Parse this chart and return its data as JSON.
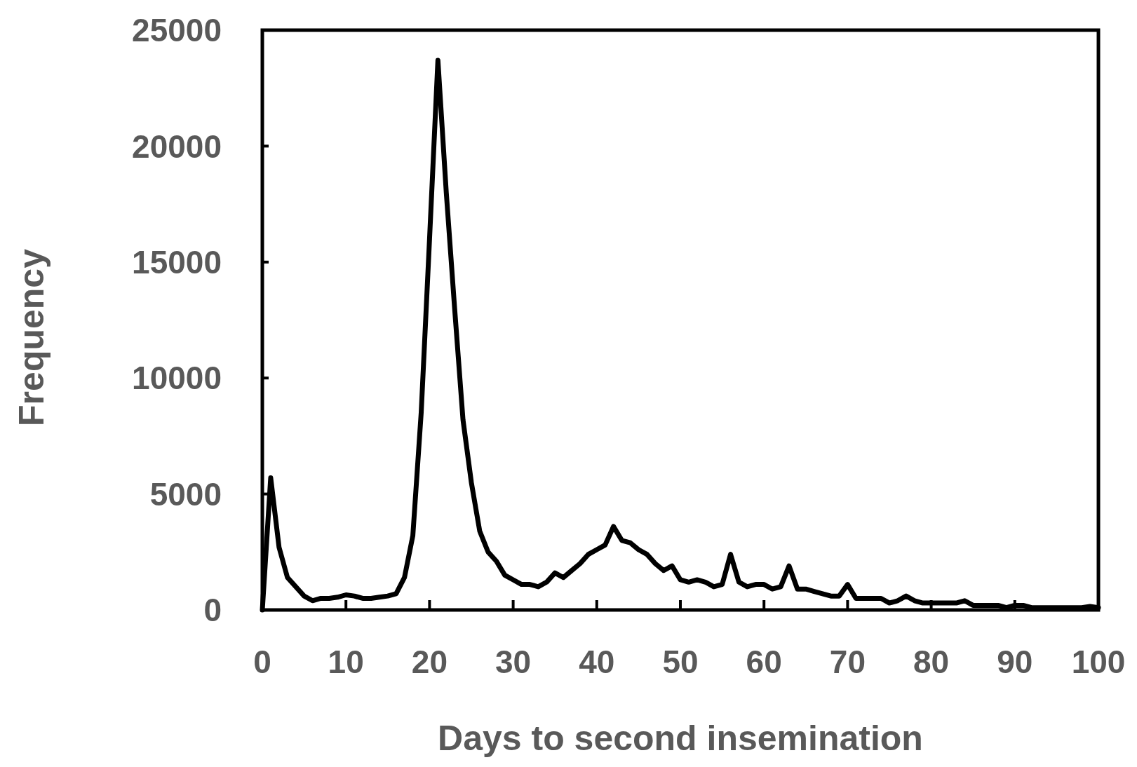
{
  "chart_data": {
    "type": "line",
    "xlabel": "Days to second insemination",
    "ylabel": "Frequency",
    "x": [
      0,
      1,
      2,
      3,
      4,
      5,
      6,
      7,
      8,
      9,
      10,
      11,
      12,
      13,
      14,
      15,
      16,
      17,
      18,
      19,
      20,
      21,
      22,
      23,
      24,
      25,
      26,
      27,
      28,
      29,
      30,
      31,
      32,
      33,
      34,
      35,
      36,
      37,
      38,
      39,
      40,
      41,
      42,
      43,
      44,
      45,
      46,
      47,
      48,
      49,
      50,
      51,
      52,
      53,
      54,
      55,
      56,
      57,
      58,
      59,
      60,
      61,
      62,
      63,
      64,
      65,
      66,
      67,
      68,
      69,
      70,
      71,
      72,
      73,
      74,
      75,
      76,
      77,
      78,
      79,
      80,
      81,
      82,
      83,
      84,
      85,
      86,
      87,
      88,
      89,
      90,
      91,
      92,
      93,
      94,
      95,
      96,
      97,
      98,
      99,
      100
    ],
    "series": [
      {
        "color": "#000000",
        "values": [
          0,
          5700,
          2700,
          1400,
          1000,
          600,
          400,
          500,
          500,
          550,
          650,
          600,
          500,
          500,
          550,
          600,
          700,
          1400,
          3200,
          8500,
          16000,
          23700,
          18000,
          13000,
          8200,
          5500,
          3400,
          2500,
          2100,
          1500,
          1300,
          1100,
          1100,
          1000,
          1200,
          1600,
          1400,
          1700,
          2000,
          2400,
          2600,
          2800,
          3600,
          3000,
          2900,
          2600,
          2400,
          2000,
          1700,
          1900,
          1300,
          1200,
          1300,
          1200,
          1000,
          1100,
          2400,
          1200,
          1000,
          1100,
          1100,
          900,
          1000,
          1900,
          900,
          900,
          800,
          700,
          600,
          600,
          1100,
          500,
          500,
          500,
          500,
          300,
          400,
          600,
          400,
          300,
          300,
          300,
          300,
          300,
          400,
          200,
          200,
          200,
          200,
          100,
          200,
          200,
          100,
          100,
          100,
          100,
          100,
          100,
          100,
          150,
          100
        ]
      }
    ],
    "xlim": [
      0,
      100
    ],
    "xticks": [
      0,
      10,
      20,
      30,
      40,
      50,
      60,
      70,
      80,
      90,
      100
    ],
    "ylim": [
      0,
      25000
    ],
    "yticks": [
      0,
      5000,
      10000,
      15000,
      20000,
      25000
    ],
    "grid": false,
    "marker": "none",
    "line_style": "solid"
  }
}
